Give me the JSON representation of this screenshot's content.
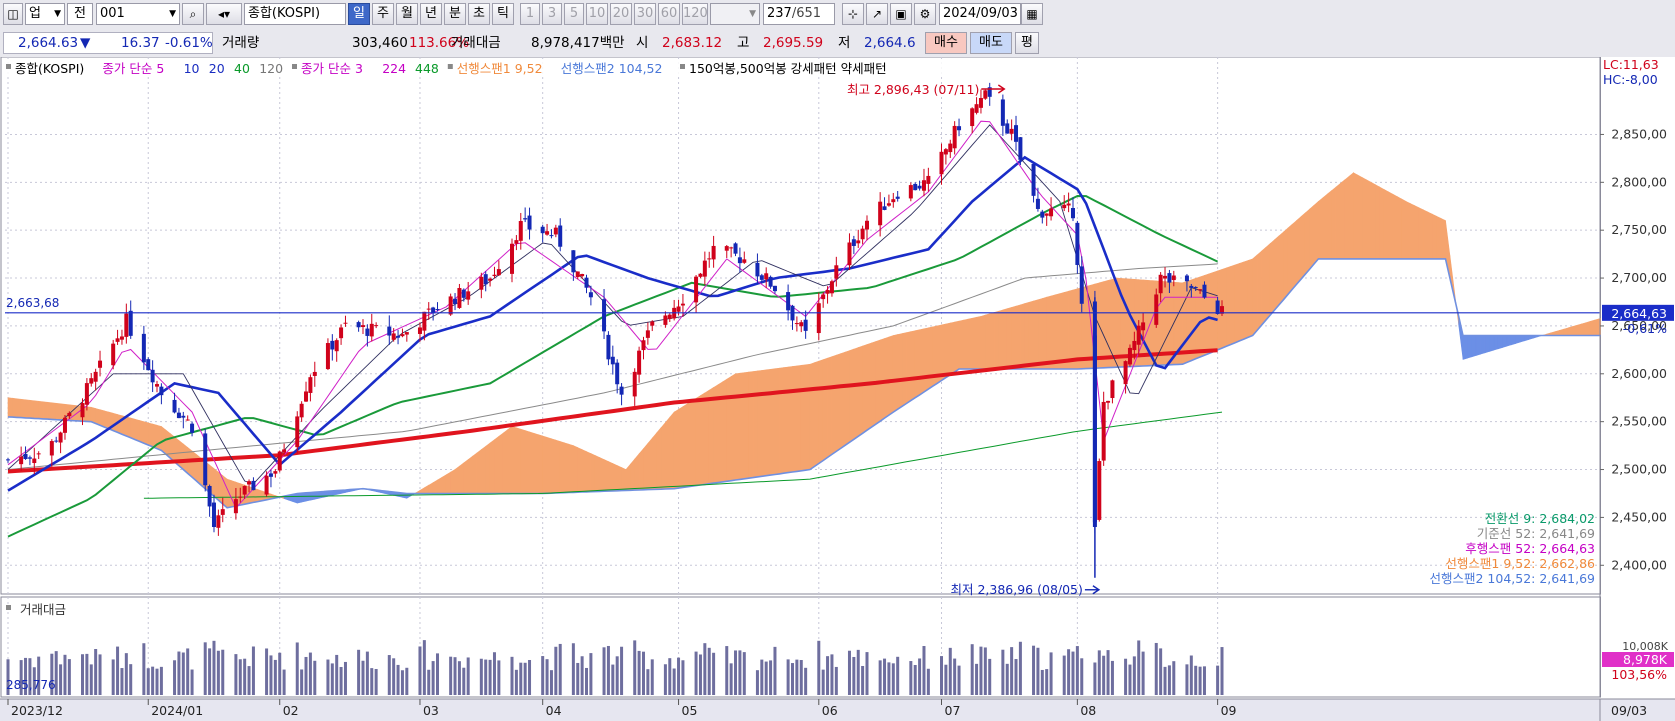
{
  "toolbar": {
    "type_select": "업",
    "jeon_label": "전",
    "code_value": "001",
    "index_name": "종합(KOSPI)",
    "periods": [
      {
        "label": "일",
        "selected": true
      },
      {
        "label": "주"
      },
      {
        "label": "월"
      },
      {
        "label": "년"
      },
      {
        "label": "분"
      },
      {
        "label": "초"
      },
      {
        "label": "틱"
      }
    ],
    "intervals": [
      "1",
      "3",
      "5",
      "10",
      "20",
      "30",
      "60",
      "120"
    ],
    "count_display": "237",
    "count_total": "/651",
    "date_value": "2024/09/03"
  },
  "quote": {
    "price": "2,664.63",
    "change": "16.37",
    "change_pct": "-0.61%",
    "volume_label": "거래량",
    "volume": "303,460",
    "volume_pct": "113.66%",
    "turnover_label": "거래대금",
    "turnover": "8,978,417백만",
    "open_label": "시",
    "open": "2,683.12",
    "high_label": "고",
    "high": "2,695.59",
    "low_label": "저",
    "low": "2,664.6",
    "buy_label": "매수",
    "sell_label": "매도",
    "avg_label": "평"
  },
  "chart_data": {
    "type": "line",
    "title": "",
    "legend": [
      {
        "text": "종합(KOSPI)",
        "color": "#000000"
      },
      {
        "text": "종가 단순 5",
        "color": "#c400c4"
      },
      {
        "text": "10",
        "color": "#1a2dc0"
      },
      {
        "text": "20",
        "color": "#1a2dc0"
      },
      {
        "text": "40",
        "color": "#0a9a2a"
      },
      {
        "text": "120",
        "color": "#777777"
      },
      {
        "text": "종가 단순 3",
        "color": "#c400c4"
      },
      {
        "text": "224",
        "color": "#c400c4"
      },
      {
        "text": "448",
        "color": "#0a9a2a"
      },
      {
        "text": "선행스팬1 9,52",
        "color": "#f08a3c"
      },
      {
        "text": "선행스팬2 104,52",
        "color": "#4a78d8"
      },
      {
        "text": "150억봉,500억봉 강세패턴 약세패턴",
        "color": "#000000"
      }
    ],
    "lc_label": "LC:11,63",
    "hc_label": "HC:-8,00",
    "y_ticks": [
      "2,850,00",
      "2,800,00",
      "2,750,00",
      "2,700,00",
      "2,650,00",
      "2,600,00",
      "2,550,00",
      "2,500,00",
      "2,450,00",
      "2,400,00"
    ],
    "y_range": [
      2370,
      2910
    ],
    "x_ticks": [
      "2023/12",
      "2024/01",
      "02",
      "03",
      "04",
      "05",
      "06",
      "07",
      "08",
      "09"
    ],
    "x_end_label": "09/03",
    "ref_line_label": "2,663,68",
    "ref_line_value": 2663.68,
    "current_value_label": "2,664,63",
    "current_change_label": "-0,61%",
    "high_annotation": "최고 2,896,43 (07/11)",
    "high_value": 2896.43,
    "low_annotation": "최저 2,386,96 (08/05)",
    "low_value": 2386.96,
    "close_keypoints": [
      [
        "2023/12/01",
        2510
      ],
      [
        "2023/12/10",
        2520
      ],
      [
        "2023/12/20",
        2590
      ],
      [
        "2023/12/28",
        2655
      ],
      [
        "2024/01/05",
        2580
      ],
      [
        "2024/01/12",
        2545
      ],
      [
        "2024/01/17",
        2440
      ],
      [
        "2024/01/22",
        2470
      ],
      [
        "2024/01/31",
        2500
      ],
      [
        "2024/02/08",
        2600
      ],
      [
        "2024/02/16",
        2650
      ],
      [
        "2024/02/29",
        2640
      ],
      [
        "2024/03/08",
        2670
      ],
      [
        "2024/03/20",
        2700
      ],
      [
        "2024/03/27",
        2755
      ],
      [
        "2024/04/04",
        2745
      ],
      [
        "2024/04/12",
        2680
      ],
      [
        "2024/04/19",
        2580
      ],
      [
        "2024/04/26",
        2650
      ],
      [
        "2024/05/03",
        2680
      ],
      [
        "2024/05/10",
        2730
      ],
      [
        "2024/05/17",
        2720
      ],
      [
        "2024/05/24",
        2690
      ],
      [
        "2024/05/31",
        2640
      ],
      [
        "2024/06/07",
        2710
      ],
      [
        "2024/06/14",
        2760
      ],
      [
        "2024/06/21",
        2790
      ],
      [
        "2024/06/28",
        2800
      ],
      [
        "2024/07/05",
        2860
      ],
      [
        "2024/07/11",
        2890
      ],
      [
        "2024/07/17",
        2850
      ],
      [
        "2024/07/23",
        2770
      ],
      [
        "2024/07/31",
        2770
      ],
      [
        "2024/08/02",
        2670
      ],
      [
        "2024/08/05",
        2440
      ],
      [
        "2024/08/07",
        2570
      ],
      [
        "2024/08/13",
        2620
      ],
      [
        "2024/08/20",
        2700
      ],
      [
        "2024/08/27",
        2690
      ],
      [
        "2024/09/03",
        2665
      ]
    ],
    "ma5_keypoints": [
      [
        "2023/12/01",
        2505
      ],
      [
        "2023/12/20",
        2570
      ],
      [
        "2023/12/28",
        2630
      ],
      [
        "2024/01/12",
        2560
      ],
      [
        "2024/01/22",
        2460
      ],
      [
        "2024/02/05",
        2530
      ],
      [
        "2024/02/20",
        2630
      ],
      [
        "2024/03/10",
        2670
      ],
      [
        "2024/03/27",
        2740
      ],
      [
        "2024/04/15",
        2680
      ],
      [
        "2024/04/26",
        2620
      ],
      [
        "2024/05/13",
        2720
      ],
      [
        "2024/05/31",
        2660
      ],
      [
        "2024/06/14",
        2740
      ],
      [
        "2024/06/28",
        2790
      ],
      [
        "2024/07/11",
        2870
      ],
      [
        "2024/07/23",
        2790
      ],
      [
        "2024/08/02",
        2740
      ],
      [
        "2024/08/07",
        2530
      ],
      [
        "2024/08/20",
        2680
      ],
      [
        "2024/09/03",
        2680
      ]
    ],
    "ma10_keypoints": [
      [
        "2023/12/01",
        2500
      ],
      [
        "2023/12/25",
        2600
      ],
      [
        "2024/01/10",
        2600
      ],
      [
        "2024/01/25",
        2480
      ],
      [
        "2024/02/10",
        2560
      ],
      [
        "2024/02/28",
        2640
      ],
      [
        "2024/03/15",
        2680
      ],
      [
        "2024/04/02",
        2740
      ],
      [
        "2024/04/20",
        2650
      ],
      [
        "2024/05/03",
        2660
      ],
      [
        "2024/05/20",
        2720
      ],
      [
        "2024/06/05",
        2690
      ],
      [
        "2024/06/25",
        2770
      ],
      [
        "2024/07/12",
        2860
      ],
      [
        "2024/07/28",
        2780
      ],
      [
        "2024/08/05",
        2660
      ],
      [
        "2024/08/14",
        2570
      ],
      [
        "2024/08/27",
        2690
      ],
      [
        "2024/09/03",
        2680
      ]
    ],
    "ma20_keypoints": [
      [
        "2023/12/01",
        2478
      ],
      [
        "2023/12/20",
        2530
      ],
      [
        "2024/01/08",
        2590
      ],
      [
        "2024/01/18",
        2580
      ],
      [
        "2024/02/01",
        2505
      ],
      [
        "2024/02/15",
        2560
      ],
      [
        "2024/03/05",
        2640
      ],
      [
        "2024/03/20",
        2660
      ],
      [
        "2024/04/10",
        2725
      ],
      [
        "2024/04/25",
        2700
      ],
      [
        "2024/05/10",
        2680
      ],
      [
        "2024/05/24",
        2700
      ],
      [
        "2024/06/10",
        2710
      ],
      [
        "2024/06/28",
        2730
      ],
      [
        "2024/07/08",
        2780
      ],
      [
        "2024/07/20",
        2826
      ],
      [
        "2024/08/02",
        2790
      ],
      [
        "2024/08/12",
        2670
      ],
      [
        "2024/08/20",
        2600
      ],
      [
        "2024/08/30",
        2660
      ],
      [
        "2024/09/03",
        2655
      ]
    ],
    "ma40_keypoints": [
      [
        "2023/12/01",
        2430
      ],
      [
        "2023/12/20",
        2470
      ],
      [
        "2024/01/05",
        2530
      ],
      [
        "2024/01/25",
        2555
      ],
      [
        "2024/02/10",
        2535
      ],
      [
        "2024/02/28",
        2570
      ],
      [
        "2024/03/20",
        2590
      ],
      [
        "2024/04/15",
        2660
      ],
      [
        "2024/05/05",
        2695
      ],
      [
        "2024/05/24",
        2680
      ],
      [
        "2024/06/15",
        2690
      ],
      [
        "2024/07/05",
        2720
      ],
      [
        "2024/07/25",
        2770
      ],
      [
        "2024/08/02",
        2788
      ],
      [
        "2024/08/20",
        2745
      ],
      [
        "2024/09/03",
        2715
      ]
    ],
    "ma120_keypoints": [
      [
        "2023/12/01",
        2500
      ],
      [
        "2024/01/15",
        2520
      ],
      [
        "2024/03/01",
        2540
      ],
      [
        "2024/04/15",
        2580
      ],
      [
        "2024/05/20",
        2620
      ],
      [
        "2024/06/20",
        2650
      ],
      [
        "2024/07/20",
        2700
      ],
      [
        "2024/08/15",
        2710
      ],
      [
        "2024/09/03",
        2715
      ]
    ],
    "ma224_keypoints": [
      [
        "2023/12/01",
        2498
      ],
      [
        "2024/02/01",
        2515
      ],
      [
        "2024/03/15",
        2540
      ],
      [
        "2024/05/01",
        2570
      ],
      [
        "2024/06/15",
        2590
      ],
      [
        "2024/08/01",
        2615
      ],
      [
        "2024/09/03",
        2625
      ]
    ],
    "ma448_keypoints": [
      [
        "2024/01/01",
        2470
      ],
      [
        "2024/04/01",
        2475
      ],
      [
        "2024/06/01",
        2490
      ],
      [
        "2024/08/01",
        2540
      ],
      [
        "2024/09/03",
        2560
      ]
    ],
    "span1_keypoints": [
      [
        "2023/12/01",
        2575
      ],
      [
        "2023/12/20",
        2565
      ],
      [
        "2024/01/05",
        2545
      ],
      [
        "2024/01/20",
        2490
      ],
      [
        "2024/02/05",
        2465
      ],
      [
        "2024/02/20",
        2480
      ],
      [
        "2024/03/01",
        2470
      ],
      [
        "2024/03/12",
        2500
      ],
      [
        "2024/03/25",
        2545
      ],
      [
        "2024/04/08",
        2525
      ],
      [
        "2024/04/20",
        2500
      ],
      [
        "2024/05/01",
        2560
      ],
      [
        "2024/05/15",
        2600
      ],
      [
        "2024/06/01",
        2610
      ],
      [
        "2024/06/20",
        2640
      ],
      [
        "2024/07/10",
        2660
      ],
      [
        "2024/07/25",
        2680
      ],
      [
        "2024/08/10",
        2700
      ],
      [
        "2024/08/25",
        2695
      ],
      [
        "2024/09/10",
        2720
      ],
      [
        "2024/09/25",
        2780
      ],
      [
        "2024/10/03",
        2810
      ],
      [
        "2024/10/15",
        2780
      ],
      [
        "2024/10/24",
        2760
      ],
      [
        "2024/10/28",
        2615
      ],
      [
        "2024/11/15",
        2640
      ],
      [
        "2024/11/30",
        2660
      ]
    ],
    "span2_keypoints": [
      [
        "2023/12/01",
        2555
      ],
      [
        "2023/12/20",
        2550
      ],
      [
        "2024/01/05",
        2520
      ],
      [
        "2024/01/20",
        2460
      ],
      [
        "2024/02/05",
        2475
      ],
      [
        "2024/02/20",
        2480
      ],
      [
        "2024/03/01",
        2475
      ],
      [
        "2024/04/01",
        2475
      ],
      [
        "2024/05/01",
        2480
      ],
      [
        "2024/06/01",
        2500
      ],
      [
        "2024/06/20",
        2560
      ],
      [
        "2024/07/05",
        2605
      ],
      [
        "2024/08/01",
        2605
      ],
      [
        "2024/08/25",
        2610
      ],
      [
        "2024/09/10",
        2640
      ],
      [
        "2024/09/25",
        2720
      ],
      [
        "2024/10/24",
        2720
      ],
      [
        "2024/10/28",
        2640
      ],
      [
        "2024/11/30",
        2640
      ]
    ],
    "ichimoku_values": [
      {
        "text": "전환선 9: 2,684,02",
        "color": "#0a9a6a"
      },
      {
        "text": "기준선 52: 2,641,69",
        "color": "#888888"
      },
      {
        "text": "후행스팬 52: 2,664,63",
        "color": "#c400c4"
      },
      {
        "text": "선행스팬1 9,52: 2,662,86",
        "color": "#f08a3c"
      },
      {
        "text": "선행스팬2 104,52: 2,641,69",
        "color": "#4a78d8"
      }
    ],
    "volume_panel": {
      "label": "거래대금",
      "low_label": "285,776",
      "current_label": "8,978K",
      "current_pct": "103,56%",
      "prev_label": "10,008K"
    }
  },
  "colors": {
    "up": "#d0021b",
    "down": "#1428b4",
    "cloud_bull": "#f5a46e",
    "cloud_bear": "#6b8fe6",
    "volume_bar": "#6e6e9e"
  }
}
